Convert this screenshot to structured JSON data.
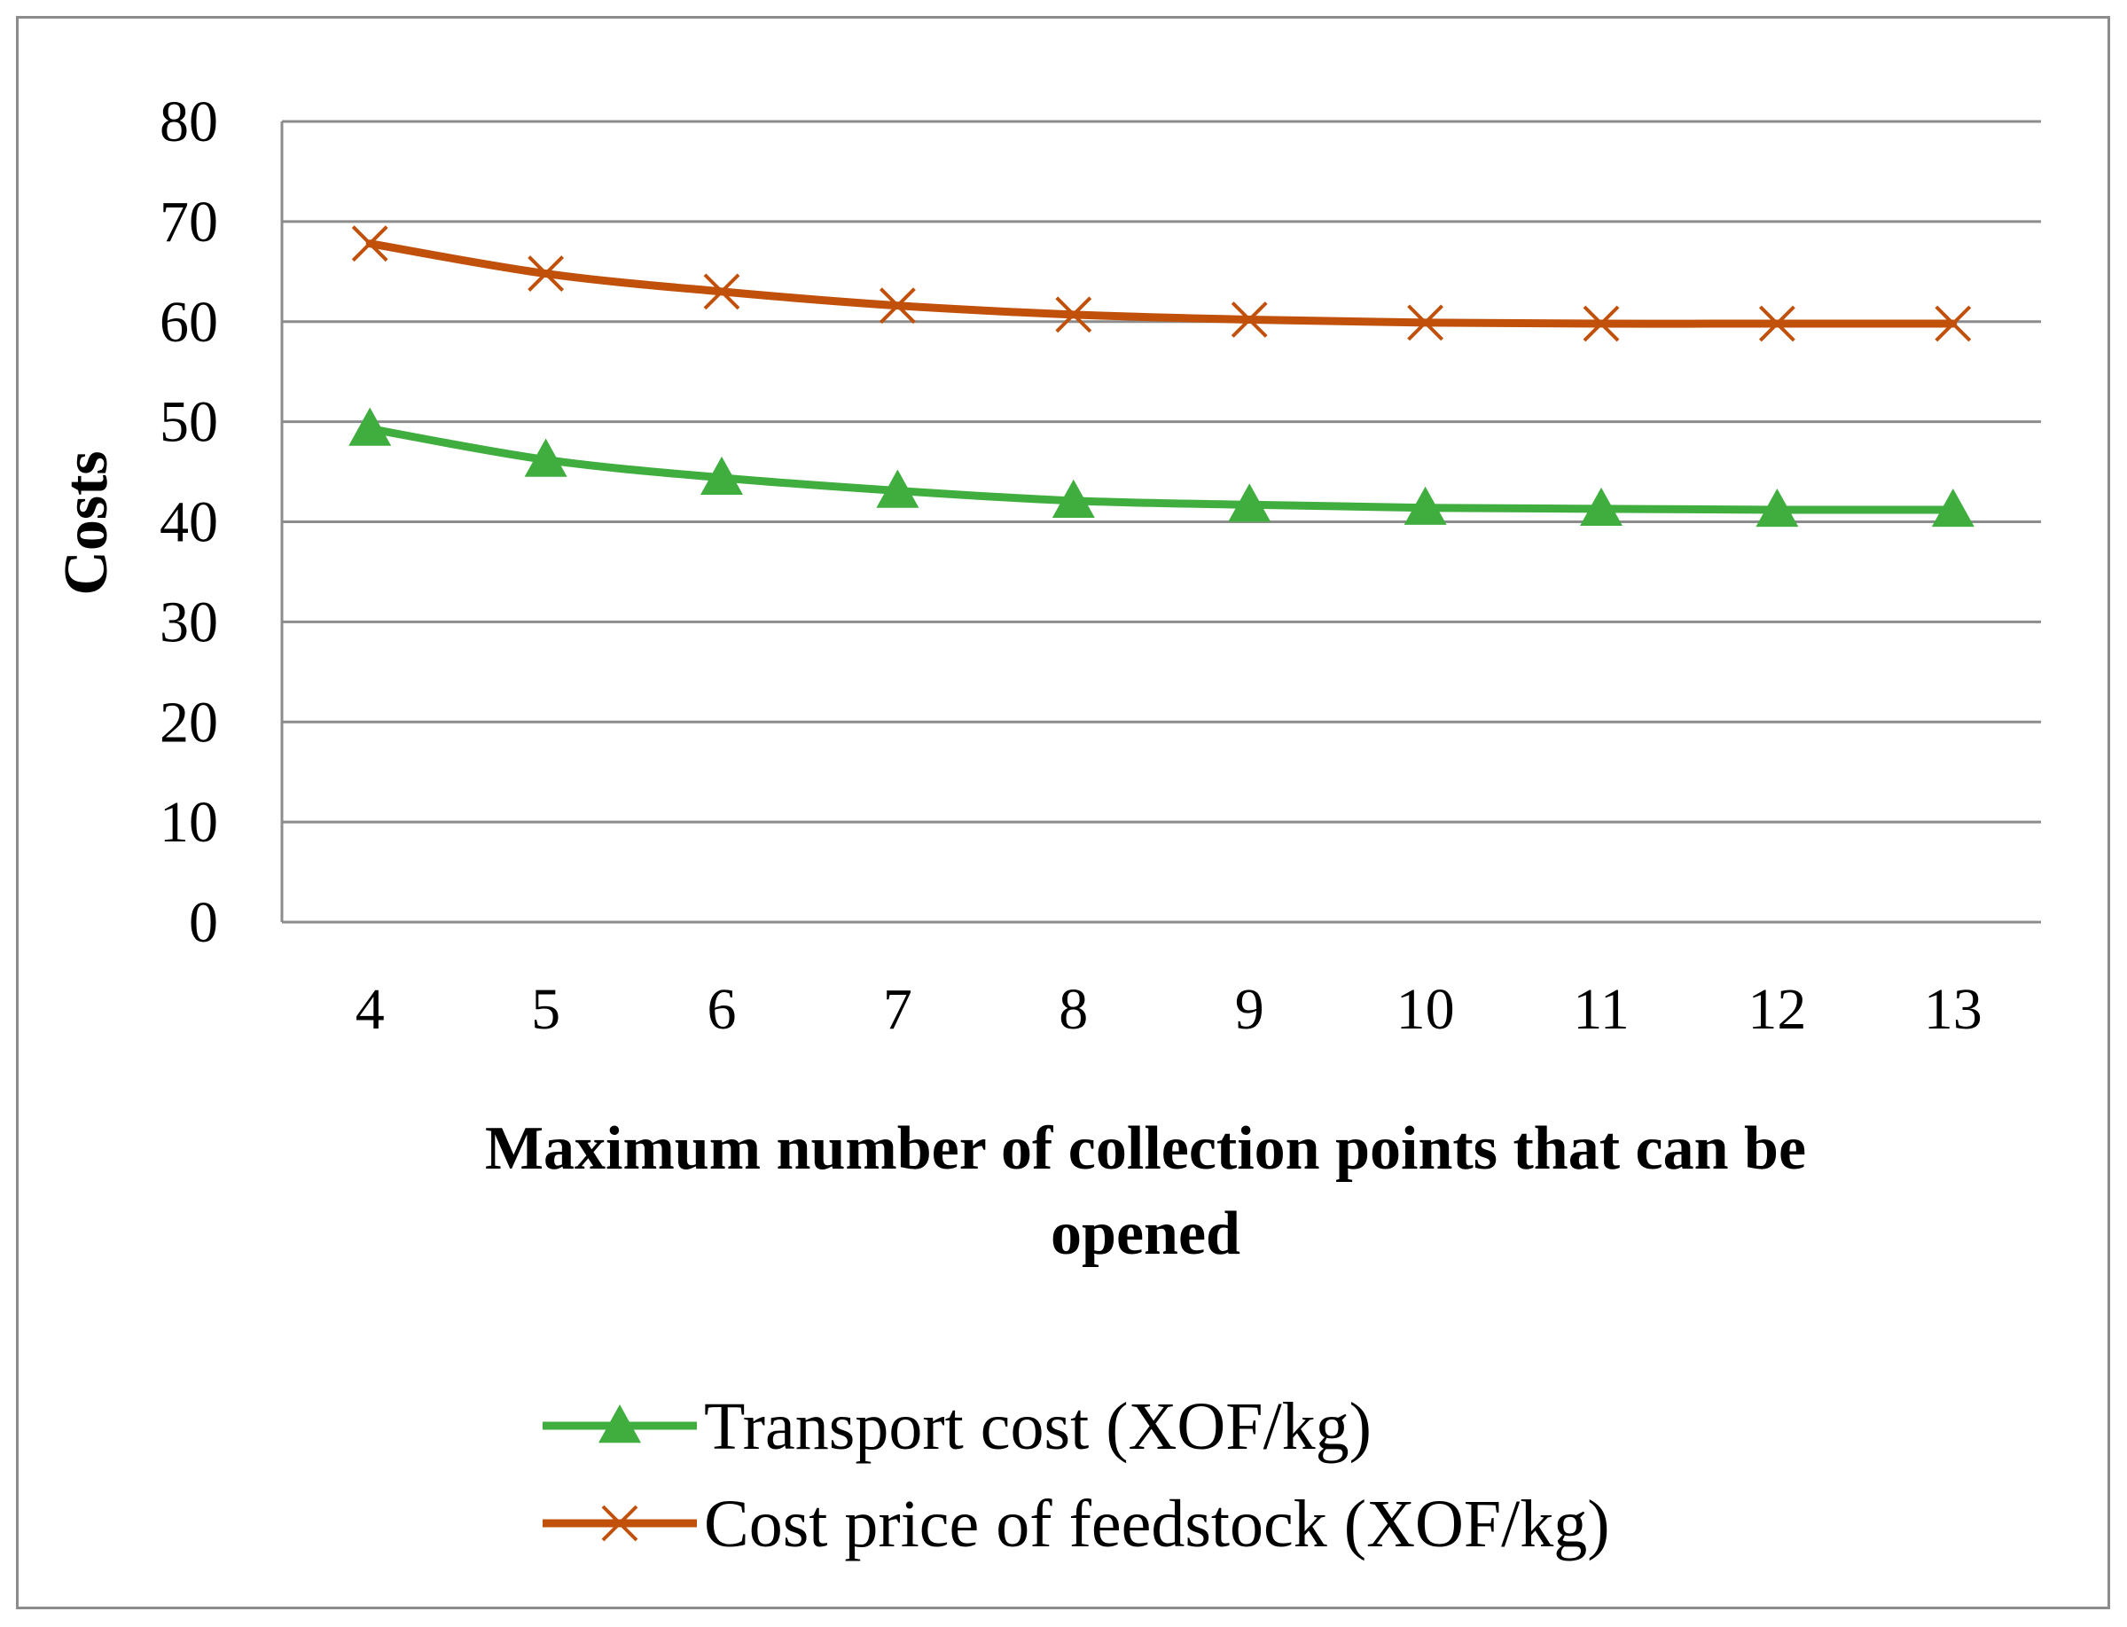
{
  "chart_data": {
    "type": "line",
    "title": "",
    "xlabel": "Maximum number of collection points that can be opened",
    "xlabel_lines": [
      "Maximum number of collection points that can be",
      "opened"
    ],
    "ylabel": "Costs",
    "ylim": [
      0,
      80
    ],
    "yticks": [
      0,
      10,
      20,
      30,
      40,
      50,
      60,
      70,
      80
    ],
    "categories": [
      "4",
      "5",
      "6",
      "7",
      "8",
      "9",
      "10",
      "11",
      "12",
      "13"
    ],
    "grid": true,
    "legend_position": "bottom",
    "series": [
      {
        "name": "Transport cost (XOF/kg)",
        "marker": "triangle",
        "color": "#3fae3f",
        "values": [
          49.3,
          46.2,
          44.4,
          43.1,
          42.1,
          41.7,
          41.4,
          41.3,
          41.2,
          41.2
        ]
      },
      {
        "name": "Cost price of feedstock (XOF/kg)",
        "marker": "x",
        "color": "#c0500a",
        "values": [
          67.8,
          64.8,
          63.0,
          61.6,
          60.7,
          60.2,
          59.9,
          59.8,
          59.8,
          59.8
        ]
      }
    ]
  },
  "colors": {
    "gridline": "#8c8c8c",
    "frame": "#8c8c8c",
    "background": "#ffffff"
  }
}
